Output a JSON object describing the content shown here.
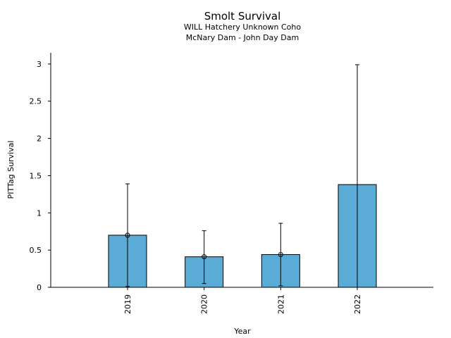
{
  "chart_data": {
    "type": "bar",
    "title": "Smolt Survival",
    "subtitle_lines": [
      "WILL Hatchery Unknown Coho",
      "McNary Dam - John Day Dam"
    ],
    "xlabel": "Year",
    "ylabel": "PITTag Survival",
    "categories": [
      "2019",
      "2020",
      "2021",
      "2022"
    ],
    "values": [
      0.7,
      0.41,
      0.44,
      1.38
    ],
    "error_low": [
      0.01,
      0.05,
      0.02,
      null
    ],
    "error_high": [
      1.39,
      0.76,
      0.86,
      2.99
    ],
    "point_markers": [
      true,
      true,
      true,
      false
    ],
    "ylim": [
      0,
      3.15
    ],
    "yticks": [
      0,
      0.5,
      1,
      1.5,
      2,
      2.5,
      3
    ],
    "ytick_labels": [
      "0",
      "0.5",
      "1",
      "1.5",
      "2",
      "2.5",
      "3"
    ],
    "grid": false,
    "bar_color": "#5aabd6"
  }
}
